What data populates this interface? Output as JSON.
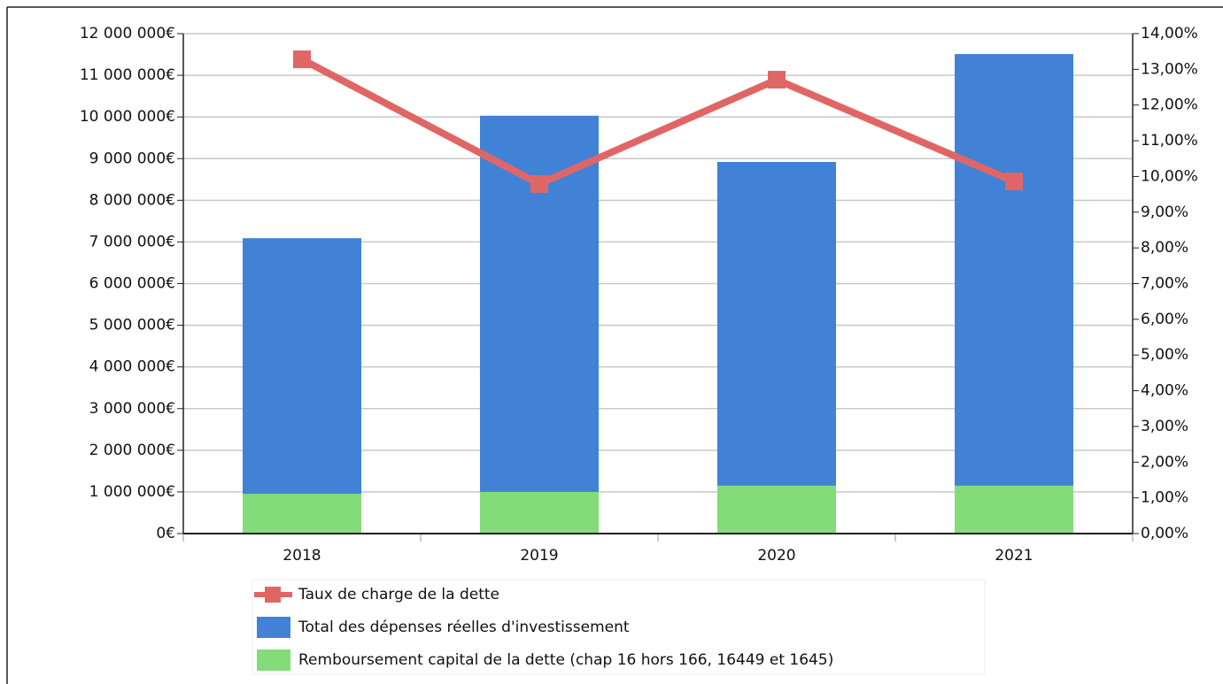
{
  "chart_data": {
    "type": "bar",
    "categories": [
      "2018",
      "2019",
      "2020",
      "2021"
    ],
    "series": [
      {
        "name": "Taux de charge de la dette",
        "type": "line",
        "axis": "y2",
        "color": "#e06666",
        "values": [
          13.28,
          9.79,
          12.71,
          9.86
        ]
      },
      {
        "name": "Total des dépenses réelles d'investissement",
        "type": "bar",
        "color": "#4182d6",
        "values": [
          7090000,
          10030000,
          8920000,
          11510000
        ]
      },
      {
        "name": "Remboursement capital de la dette (chap 16 hors 166, 16449 et 1645)",
        "type": "bar",
        "color": "#84dc78",
        "values": [
          955000,
          1000000,
          1150000,
          1150000
        ]
      }
    ],
    "ylim": [
      0,
      12000000
    ],
    "yticks": [
      {
        "value": 0,
        "label": "0€"
      },
      {
        "value": 1000000,
        "label": "1 000 000€"
      },
      {
        "value": 2000000,
        "label": "2 000 000€"
      },
      {
        "value": 3000000,
        "label": "3 000 000€"
      },
      {
        "value": 4000000,
        "label": "4 000 000€"
      },
      {
        "value": 5000000,
        "label": "5 000 000€"
      },
      {
        "value": 6000000,
        "label": "6 000 000€"
      },
      {
        "value": 7000000,
        "label": "7 000 000€"
      },
      {
        "value": 8000000,
        "label": "8 000 000€"
      },
      {
        "value": 9000000,
        "label": "9 000 000€"
      },
      {
        "value": 10000000,
        "label": "10 000 000€"
      },
      {
        "value": 11000000,
        "label": "11 000 000€"
      },
      {
        "value": 12000000,
        "label": "12 000 000€"
      }
    ],
    "y2lim": [
      0,
      14
    ],
    "y2ticks": [
      {
        "value": 0,
        "label": "0,00%"
      },
      {
        "value": 1,
        "label": "1,00%"
      },
      {
        "value": 2,
        "label": "2,00%"
      },
      {
        "value": 3,
        "label": "3,00%"
      },
      {
        "value": 4,
        "label": "4,00%"
      },
      {
        "value": 5,
        "label": "5,00%"
      },
      {
        "value": 6,
        "label": "6,00%"
      },
      {
        "value": 7,
        "label": "7,00%"
      },
      {
        "value": 8,
        "label": "8,00%"
      },
      {
        "value": 9,
        "label": "9,00%"
      },
      {
        "value": 10,
        "label": "10,00%"
      },
      {
        "value": 11,
        "label": "11,00%"
      },
      {
        "value": 12,
        "label": "12,00%"
      },
      {
        "value": 13,
        "label": "13,00%"
      },
      {
        "value": 14,
        "label": "14,00%"
      }
    ],
    "grid": true,
    "legend": "bottom"
  }
}
